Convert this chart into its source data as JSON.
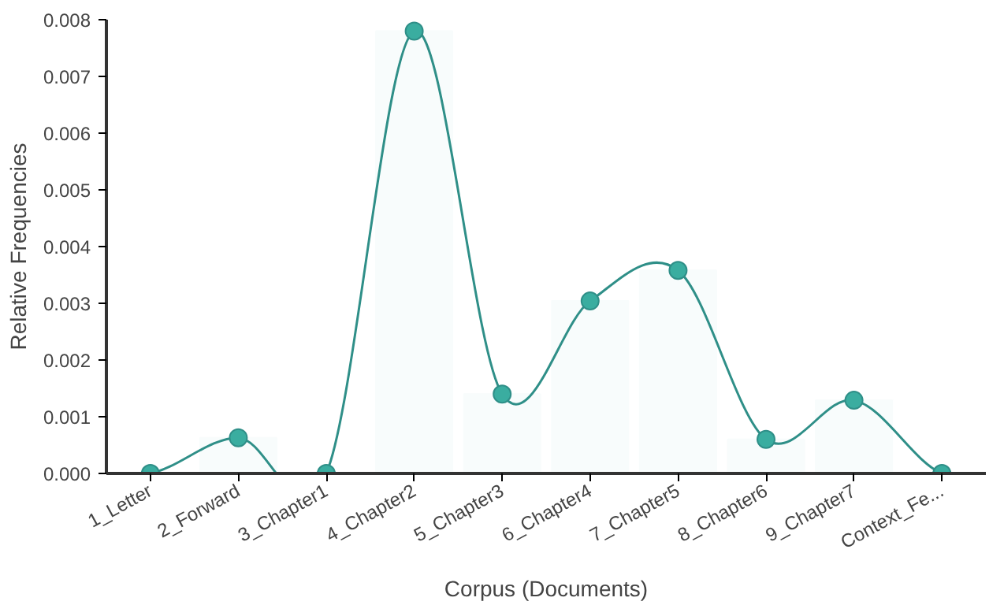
{
  "chart_data": {
    "type": "bar",
    "xlabel": "Corpus (Documents)",
    "ylabel": "Relative Frequencies",
    "categories": [
      "1_Letter",
      "2_Forward",
      "3_Chapter1",
      "4_Chapter2",
      "5_Chapter3",
      "6_Chapter4",
      "7_Chapter5",
      "8_Chapter6",
      "9_Chapter7",
      "Context_Fe..."
    ],
    "series": [
      {
        "color": "#f8fcfc",
        "values": [
          0,
          0.00063,
          0,
          0.0078,
          0.0014,
          0.00304,
          0.00358,
          0.0006,
          0.00129,
          0
        ]
      },
      {
        "type": "line",
        "color": "#2f8f88",
        "marker": "circle",
        "values": [
          0,
          0.00063,
          0,
          0.0078,
          0.0014,
          0.00304,
          0.00358,
          0.0006,
          0.00129,
          0
        ]
      }
    ],
    "ylim": [
      0,
      0.008
    ],
    "yticks": [
      {
        "value": 0,
        "label": "0.000"
      },
      {
        "value": 0.001,
        "label": "0.001"
      },
      {
        "value": 0.002,
        "label": "0.002"
      },
      {
        "value": 0.003,
        "label": "0.003"
      },
      {
        "value": 0.004,
        "label": "0.004"
      },
      {
        "value": 0.005,
        "label": "0.005"
      },
      {
        "value": 0.006,
        "label": "0.006"
      },
      {
        "value": 0.007,
        "label": "0.007"
      },
      {
        "value": 0.008,
        "label": "0.008"
      }
    ],
    "grid": false
  }
}
